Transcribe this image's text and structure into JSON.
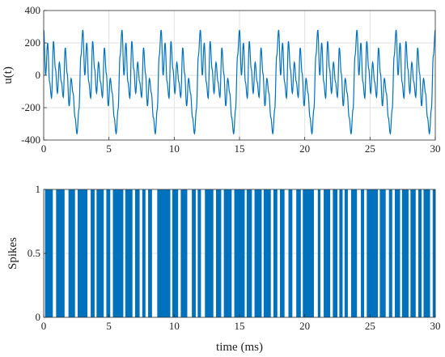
{
  "chart_data": [
    {
      "type": "line",
      "xlabel": "",
      "ylabel": "u(t)",
      "xlim": [
        0,
        30
      ],
      "ylim": [
        -400,
        400
      ],
      "xticks": [
        "0",
        "5",
        "10",
        "15",
        "20",
        "25",
        "30"
      ],
      "yticks": [
        "-400",
        "-200",
        "0",
        "200",
        "400"
      ],
      "grid": true,
      "color": "#0072BD",
      "period_ms": 3,
      "series": [
        {
          "x": [
            0,
            0.15,
            0.3,
            0.45,
            0.6,
            0.75,
            0.9,
            1.05,
            1.2,
            1.35,
            1.5,
            1.65,
            1.8,
            1.95,
            2.1,
            2.25,
            2.4,
            2.55,
            2.7,
            2.85,
            3.0
          ],
          "values": [
            280,
            0,
            200,
            -40,
            -140,
            210,
            40,
            -110,
            80,
            -40,
            -135,
            170,
            10,
            -190,
            -20,
            -110,
            -260,
            -360,
            -210,
            120,
            280
          ]
        }
      ]
    },
    {
      "type": "bar",
      "xlabel": "time (ms)",
      "ylabel": "Spikes",
      "xlim": [
        0,
        30
      ],
      "ylim": [
        0,
        1
      ],
      "xticks": [
        "0",
        "5",
        "10",
        "15",
        "20",
        "25",
        "30"
      ],
      "yticks": [
        "0",
        "0.5",
        "1"
      ],
      "grid": true,
      "color": "#0072BD",
      "spike_height": 1,
      "spike_intervals_ms": [
        [
          0.1,
          0.7
        ],
        [
          0.95,
          1.6
        ],
        [
          1.9,
          2.4
        ],
        [
          2.6,
          3.35
        ],
        [
          3.6,
          3.9
        ],
        [
          4.05,
          4.6
        ],
        [
          4.8,
          5.1
        ],
        [
          5.3,
          6.1
        ],
        [
          6.25,
          6.8
        ],
        [
          7.0,
          7.35
        ],
        [
          7.55,
          7.8
        ],
        [
          8.0,
          8.3
        ],
        [
          8.7,
          9.7
        ],
        [
          9.85,
          10.3
        ],
        [
          10.5,
          11.0
        ],
        [
          11.35,
          11.65
        ],
        [
          11.8,
          12.05
        ],
        [
          12.35,
          13.0
        ],
        [
          13.2,
          13.6
        ],
        [
          13.8,
          14.4
        ],
        [
          14.6,
          15.4
        ],
        [
          15.55,
          15.95
        ],
        [
          16.15,
          16.7
        ],
        [
          16.85,
          17.4
        ],
        [
          17.6,
          17.9
        ],
        [
          18.1,
          18.45
        ],
        [
          18.75,
          19.05
        ],
        [
          19.35,
          19.7
        ],
        [
          19.85,
          20.7
        ],
        [
          21.0,
          21.2
        ],
        [
          21.45,
          21.95
        ],
        [
          22.15,
          22.5
        ],
        [
          22.65,
          22.9
        ],
        [
          23.05,
          23.3
        ],
        [
          23.55,
          24.0
        ],
        [
          24.3,
          24.55
        ],
        [
          24.75,
          25.6
        ],
        [
          25.75,
          26.2
        ],
        [
          26.45,
          26.7
        ],
        [
          26.9,
          27.3
        ],
        [
          27.45,
          27.95
        ],
        [
          28.1,
          28.5
        ],
        [
          28.7,
          28.95
        ],
        [
          29.1,
          29.6
        ],
        [
          29.8,
          30.0
        ]
      ]
    }
  ]
}
